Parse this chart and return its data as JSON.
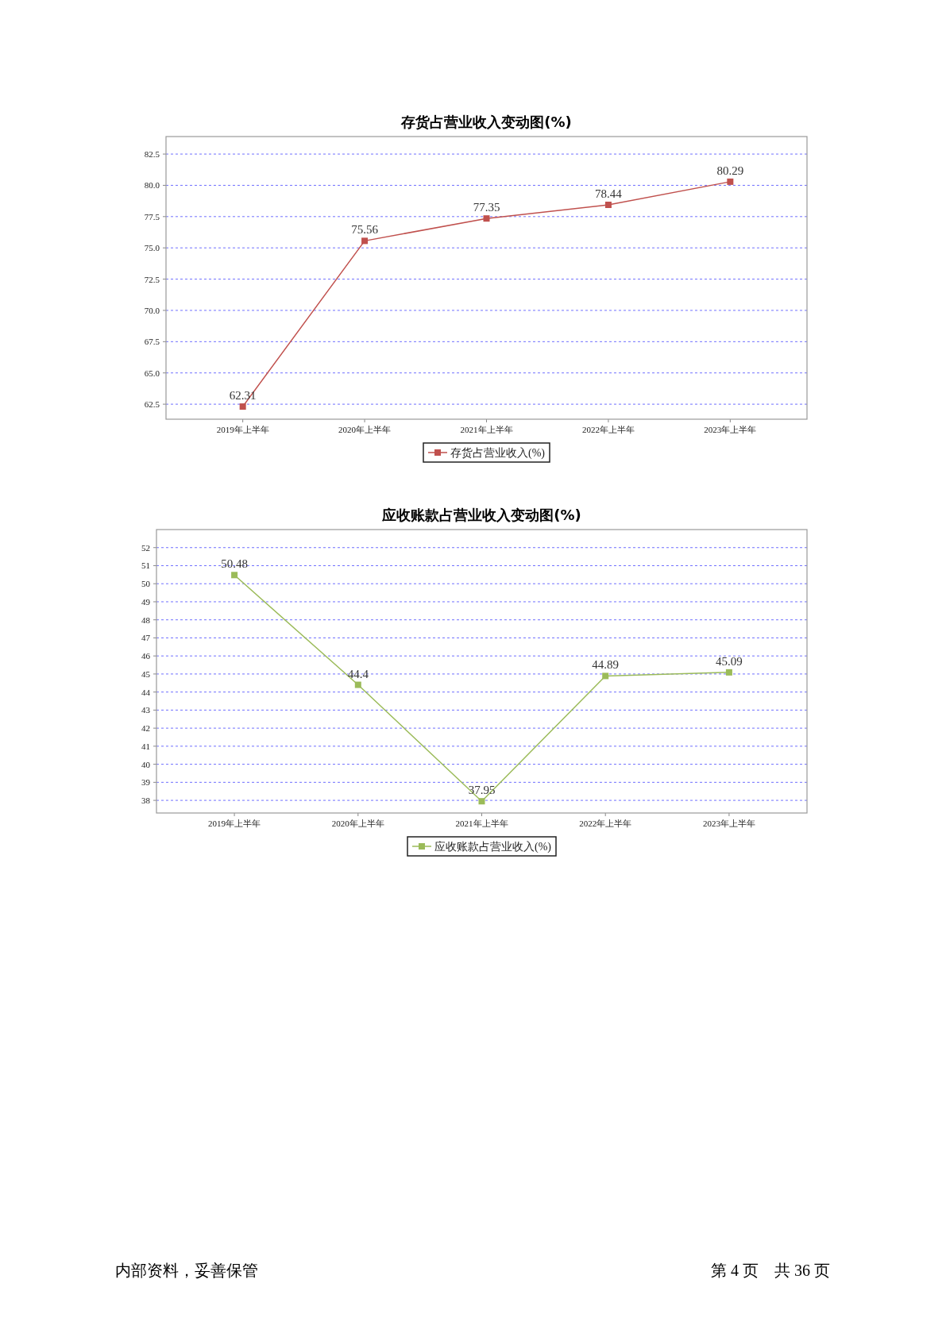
{
  "chart_data": [
    {
      "type": "line",
      "title": "存货占营业收入变动图(%)",
      "categories": [
        "2019年上半年",
        "2020年上半年",
        "2021年上半年",
        "2022年上半年",
        "2023年上半年"
      ],
      "series": [
        {
          "name": "存货占营业收入(%)",
          "color": "#c0504d",
          "values": [
            62.31,
            75.56,
            77.35,
            78.44,
            80.29
          ]
        }
      ],
      "ylim": [
        61.3,
        83.9
      ],
      "yticks": [
        62.5,
        {
          "value": 65,
          "label": "65.0"
        },
        67.5,
        {
          "value": 70,
          "label": "70.0"
        },
        72.5,
        {
          "value": 75,
          "label": "75.0"
        },
        77.5,
        {
          "value": 80,
          "label": "80.0"
        },
        82.5
      ],
      "grid": "y",
      "legend": "bottom",
      "marker": "square",
      "line_style": "solid",
      "data_labels": true
    },
    {
      "type": "line",
      "title": "应收账款占营业收入变动图(%)",
      "categories": [
        "2019年上半年",
        "2020年上半年",
        "2021年上半年",
        "2022年上半年",
        "2023年上半年"
      ],
      "series": [
        {
          "name": "应收账款占营业收入(%)",
          "color": "#9bbb59",
          "values": [
            50.48,
            44.4,
            37.95,
            44.89,
            45.09
          ]
        }
      ],
      "ylim": [
        37.3,
        53
      ],
      "yticks": [
        38,
        39,
        40,
        41,
        42,
        43,
        44,
        45,
        46,
        47,
        48,
        49,
        50,
        51,
        52
      ],
      "grid": "y",
      "legend": "bottom",
      "marker": "square",
      "line_style": "solid",
      "data_labels": true,
      "annotations": [
        "内部资料，妥善保管",
        "第 4 页　共 36 页"
      ]
    }
  ]
}
